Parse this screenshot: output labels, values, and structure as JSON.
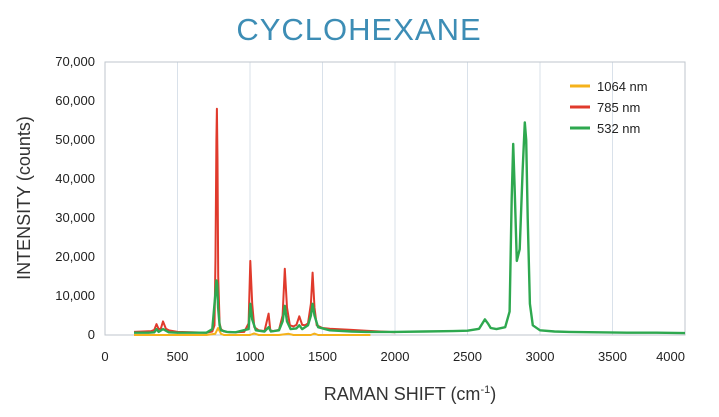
{
  "chart_data": {
    "type": "line",
    "title": "CYCLOHEXANE",
    "xlabel_main": "RAMAN SHIFT (cm",
    "xlabel_sup": "-1",
    "xlabel_tail": ")",
    "ylabel": "INTENSITY (counts)",
    "xlim": [
      0,
      4000
    ],
    "ylim": [
      0,
      70000
    ],
    "xticks": [
      0,
      500,
      1000,
      1500,
      2000,
      2500,
      3000,
      3500,
      4000
    ],
    "xtick_labels": [
      "0",
      "500",
      "1000",
      "1500",
      "2000",
      "2500",
      "3000",
      "3500",
      "4000"
    ],
    "yticks": [
      0,
      10000,
      20000,
      30000,
      40000,
      50000,
      60000,
      70000
    ],
    "ytick_labels": [
      "0",
      "10,000",
      "20,000",
      "30,000",
      "40,000",
      "50,000",
      "60,000",
      "70,000"
    ],
    "grid": "vertical",
    "legend_position": "top-right",
    "series": [
      {
        "name": "1064 nm",
        "color": "#f5b21b",
        "x": [
          200,
          380,
          700,
          760,
          780,
          800,
          820,
          1000,
          1028,
          1060,
          1200,
          1266,
          1300,
          1420,
          1444,
          1470,
          1600,
          1830
        ],
        "y": [
          0,
          0,
          0,
          300,
          1800,
          300,
          0,
          0,
          400,
          0,
          0,
          300,
          0,
          0,
          350,
          0,
          0,
          0
        ]
      },
      {
        "name": "785 nm",
        "color": "#e03a2c",
        "x": [
          200,
          320,
          340,
          355,
          370,
          385,
          400,
          420,
          440,
          500,
          600,
          700,
          740,
          755,
          762,
          768,
          772,
          776,
          781,
          790,
          800,
          820,
          860,
          900,
          960,
          990,
          1002,
          1015,
          1030,
          1060,
          1100,
          1128,
          1140,
          1160,
          1200,
          1225,
          1240,
          1255,
          1275,
          1300,
          1320,
          1340,
          1360,
          1380,
          1400,
          1420,
          1432,
          1445,
          1460,
          1500,
          1550,
          1600,
          1650,
          1700,
          1800,
          1900,
          2000
        ],
        "y": [
          800,
          1000,
          1300,
          2800,
          1500,
          1600,
          3500,
          1600,
          1200,
          800,
          700,
          600,
          900,
          2500,
          20000,
          50000,
          58000,
          45000,
          15000,
          3000,
          1500,
          900,
          700,
          700,
          800,
          3000,
          19000,
          8000,
          2000,
          1200,
          1000,
          5500,
          1200,
          1000,
          1300,
          5000,
          17000,
          7000,
          2500,
          2200,
          2600,
          4800,
          2600,
          2500,
          3000,
          8000,
          16000,
          7000,
          2500,
          1800,
          1600,
          1500,
          1400,
          1300,
          1100,
          900,
          700
        ]
      },
      {
        "name": "532 nm",
        "color": "#2ea84f",
        "x": [
          200,
          300,
          340,
          355,
          370,
          400,
          440,
          500,
          600,
          700,
          740,
          760,
          768,
          774,
          780,
          790,
          800,
          840,
          900,
          990,
          1002,
          1015,
          1040,
          1100,
          1128,
          1145,
          1200,
          1225,
          1240,
          1255,
          1280,
          1320,
          1340,
          1360,
          1400,
          1420,
          1432,
          1445,
          1470,
          1550,
          1700,
          1800,
          2000,
          2200,
          2400,
          2500,
          2580,
          2620,
          2640,
          2660,
          2700,
          2760,
          2790,
          2805,
          2815,
          2825,
          2840,
          2860,
          2880,
          2895,
          2905,
          2915,
          2930,
          2950,
          3000,
          3100,
          3200,
          3400,
          3600,
          3800,
          4000
        ],
        "y": [
          600,
          600,
          700,
          1500,
          800,
          1500,
          700,
          600,
          600,
          600,
          1500,
          10000,
          14000,
          13000,
          7000,
          2500,
          1200,
          800,
          700,
          1500,
          8000,
          4000,
          1200,
          900,
          2000,
          900,
          1200,
          3500,
          7500,
          3500,
          1500,
          1700,
          2500,
          1500,
          2500,
          5000,
          8000,
          5000,
          2000,
          1200,
          900,
          800,
          800,
          900,
          1000,
          1100,
          1600,
          4000,
          3000,
          1800,
          1500,
          2000,
          6000,
          35000,
          49000,
          38000,
          19000,
          22000,
          42000,
          54500,
          50000,
          30000,
          8000,
          2500,
          1200,
          900,
          800,
          700,
          600,
          600,
          500
        ]
      }
    ]
  }
}
